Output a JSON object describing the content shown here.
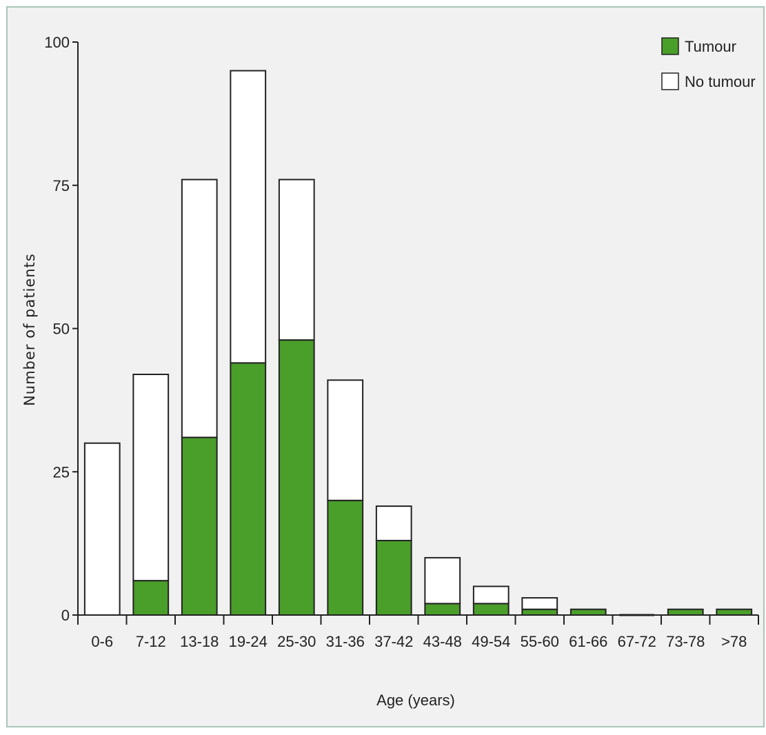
{
  "chart_data": {
    "type": "bar",
    "stacked": true,
    "xlabel": "Age (years)",
    "ylabel": "Number of patients",
    "ylim": [
      0,
      100
    ],
    "yticks": [
      0,
      25,
      50,
      75,
      100
    ],
    "categories": [
      "0-6",
      "7-12",
      "13-18",
      "19-24",
      "25-30",
      "31-36",
      "37-42",
      "43-48",
      "49-54",
      "55-60",
      "61-66",
      "67-72",
      "73-78",
      ">78"
    ],
    "series": [
      {
        "name": "Tumour",
        "color": "#4a9e2a",
        "values": [
          0,
          6,
          31,
          44,
          48,
          20,
          13,
          2,
          2,
          1,
          1,
          0,
          1,
          1
        ]
      },
      {
        "name": "No tumour",
        "color": "#ffffff",
        "values": [
          30,
          36,
          45,
          51,
          28,
          21,
          6,
          8,
          3,
          2,
          0,
          0,
          0,
          0
        ]
      }
    ],
    "legend": "top-right",
    "grid": false
  }
}
